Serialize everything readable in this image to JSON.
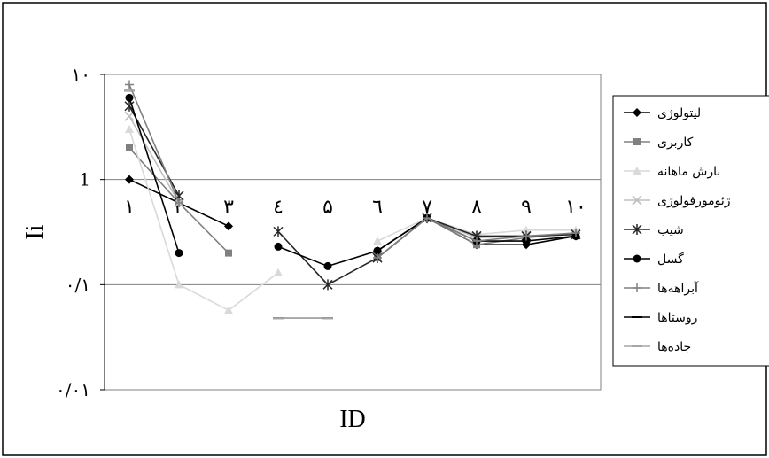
{
  "chart_data": {
    "type": "line",
    "title": "",
    "xlabel": "ID",
    "ylabel": "Ii",
    "y_scale": "log",
    "ylim": [
      0.01,
      10
    ],
    "grid": "horizontal major",
    "legend_position": "right",
    "y_ticks": [
      {
        "value": 10,
        "label": "۱۰"
      },
      {
        "value": 1,
        "label": "1"
      },
      {
        "value": 0.1,
        "label": "۰/۱"
      },
      {
        "value": 0.01,
        "label": "۰/۰۱"
      }
    ],
    "categories": [
      "۱",
      "۲",
      "۳",
      "٤",
      "۵",
      "٦",
      "۷",
      "۸",
      "۹",
      "۱۰"
    ],
    "series": [
      {
        "name": "لیتولوژی",
        "color": "#000000",
        "marker": "diamond",
        "dash": "none",
        "values": [
          1,
          0.6,
          0.36,
          null,
          null,
          0.21,
          0.43,
          0.24,
          0.24,
          0.29
        ]
      },
      {
        "name": "کاربری",
        "color": "#808080",
        "marker": "square",
        "dash": "none",
        "values": [
          2,
          0.6,
          0.2,
          null,
          null,
          0.18,
          0.43,
          0.24,
          0.28,
          0.31
        ]
      },
      {
        "name": "بارش ماهانه",
        "color": "#d9d9d9",
        "marker": "triangle",
        "dash": "none",
        "values": [
          3,
          0.1,
          0.057,
          0.13,
          null,
          0.26,
          0.43,
          0.3,
          0.33,
          0.33
        ]
      },
      {
        "name": "ژئومورفولوژی",
        "color": "#bfbfbf",
        "marker": "x",
        "dash": "none",
        "values": [
          4,
          0.6,
          null,
          null,
          null,
          0.18,
          0.43,
          0.28,
          0.29,
          0.31
        ]
      },
      {
        "name": "شیب",
        "color": "#262626",
        "marker": "star",
        "dash": "none",
        "values": [
          5,
          0.7,
          null,
          0.32,
          0.1,
          0.18,
          0.43,
          0.29,
          0.29,
          0.3
        ]
      },
      {
        "name": "گسل",
        "color": "#000000",
        "marker": "circle",
        "dash": "none",
        "values": [
          6,
          0.2,
          null,
          0.23,
          0.15,
          0.21,
          0.43,
          0.26,
          0.26,
          0.29
        ]
      },
      {
        "name": "آبراهه‌ها",
        "color": "#808080",
        "marker": "plus",
        "dash": "none",
        "values": [
          8,
          0.6,
          null,
          null,
          null,
          0.18,
          0.43,
          0.26,
          0.29,
          0.31
        ]
      },
      {
        "name": "روستاها",
        "color": "#000000",
        "marker": "dash",
        "dash": "none",
        "values": [
          7,
          null,
          null,
          0.048,
          0.048,
          null,
          null,
          null,
          null,
          null
        ]
      },
      {
        "name": "جاده‌ها",
        "color": "#a6a6a6",
        "marker": "dash",
        "dash": "none",
        "values": [
          7,
          null,
          null,
          0.048,
          0.048,
          null,
          null,
          null,
          null,
          null
        ]
      }
    ]
  }
}
